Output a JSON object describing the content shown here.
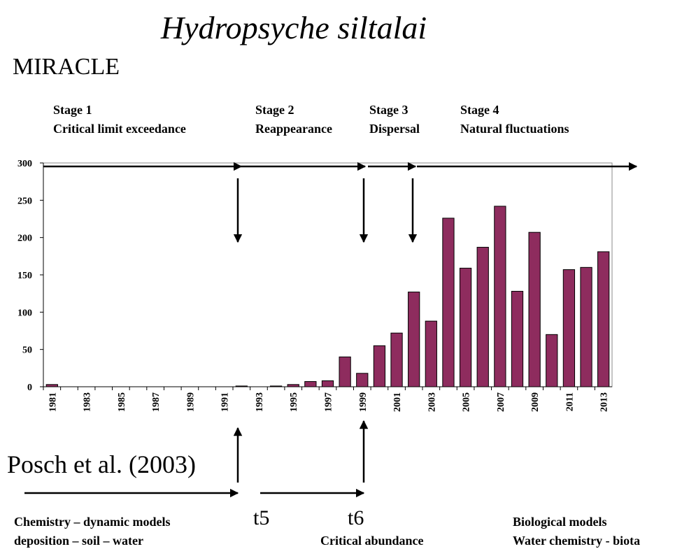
{
  "chart_data": {
    "type": "bar",
    "title": "Hydropsyche siltalai",
    "subtitle": "MIRACLE",
    "stages": [
      {
        "number": "Stage 1",
        "name": "Critical limit exceedance"
      },
      {
        "number": "Stage 2",
        "name": "Reappearance"
      },
      {
        "number": "Stage 3",
        "name": "Dispersal"
      },
      {
        "number": "Stage 4",
        "name": "Natural fluctuations"
      }
    ],
    "annotations": [
      "Posch et al. (2003)",
      "t5",
      "t6",
      "Chemistry – dynamic models",
      "deposition – soil – water",
      "Critical abundance",
      "Biological models",
      "Water chemistry - biota"
    ],
    "categories": [
      "1981",
      null,
      "1983",
      null,
      "1985",
      null,
      "1987",
      null,
      "1989",
      null,
      "1991",
      null,
      "1993",
      null,
      "1995",
      null,
      "1997",
      null,
      "1999",
      null,
      "2001",
      null,
      "2003",
      null,
      "2005",
      null,
      "2007",
      null,
      "2009",
      null,
      "2011",
      null,
      "2013"
    ],
    "values": [
      3,
      0,
      0,
      0,
      0,
      0,
      0,
      0,
      0,
      0,
      0,
      1,
      0,
      1,
      3,
      7,
      8,
      40,
      18,
      55,
      72,
      127,
      88,
      226,
      159,
      187,
      242,
      128,
      207,
      70,
      157,
      160,
      181
    ],
    "color": "#8e2c5e",
    "ylim": [
      0,
      300
    ],
    "yticks": [
      0,
      50,
      100,
      150,
      200,
      250,
      300
    ],
    "grid": false
  }
}
